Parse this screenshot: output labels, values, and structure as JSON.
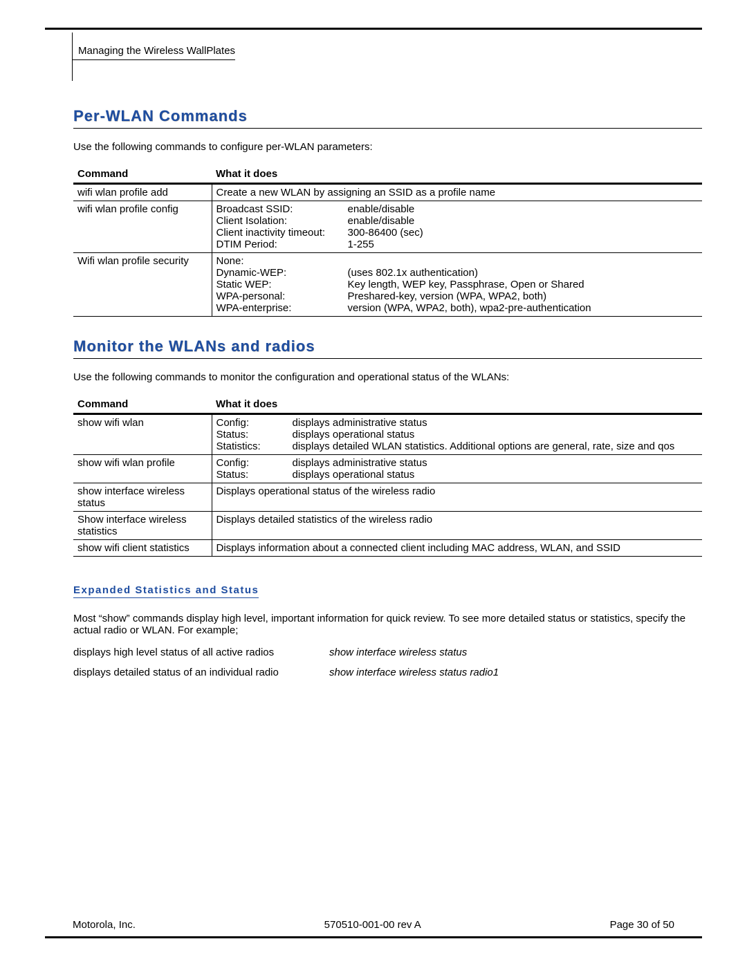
{
  "breadcrumb": "Managing the Wireless WallPlates",
  "section1": {
    "title": "Per-WLAN Commands",
    "intro": "Use the following commands to configure per-WLAN parameters:",
    "table": {
      "headers": [
        "Command",
        "What it does"
      ],
      "rows": [
        {
          "command": "wifi wlan profile add",
          "desc_plain": "Create a new WLAN by assigning an SSID as a profile name"
        },
        {
          "command": "wifi wlan profile config",
          "kv": [
            {
              "k": "Broadcast SSID:",
              "v": "enable/disable"
            },
            {
              "k": "Client Isolation:",
              "v": "enable/disable"
            },
            {
              "k": "Client inactivity timeout:",
              "v": "300-86400 (sec)"
            },
            {
              "k": "DTIM Period:",
              "v": "1-255"
            }
          ]
        },
        {
          "command": "Wifi wlan profile security",
          "kv": [
            {
              "k": "None:",
              "v": ""
            },
            {
              "k": "Dynamic-WEP:",
              "v": "(uses 802.1x authentication)"
            },
            {
              "k": "Static WEP:",
              "v": "Key length, WEP key, Passphrase, Open or Shared"
            },
            {
              "k": "WPA-personal:",
              "v": "Preshared-key, version (WPA, WPA2, both)"
            },
            {
              "k": "WPA-enterprise:",
              "v": "version (WPA, WPA2, both), wpa2-pre-authentication"
            }
          ]
        }
      ]
    }
  },
  "section2": {
    "title": "Monitor the WLANs and radios",
    "intro": "Use the following commands to monitor the configuration and operational status of the WLANs:",
    "table": {
      "headers": [
        "Command",
        "What it does"
      ],
      "rows": [
        {
          "command": "show wifi wlan",
          "kv2": [
            {
              "k": "Config:",
              "v": "displays administrative status"
            },
            {
              "k": "Status:",
              "v": "displays operational status"
            },
            {
              "k": "Statistics:",
              "v": "displays detailed WLAN statistics.  Additional options are general, rate, size and qos"
            }
          ]
        },
        {
          "command": "show wifi wlan profile",
          "kv2": [
            {
              "k": "Config:",
              "v": "displays administrative status"
            },
            {
              "k": "Status:",
              "v": "displays operational status"
            }
          ]
        },
        {
          "command": "show interface wireless status",
          "desc_plain": "Displays operational status of the wireless radio"
        },
        {
          "command": "Show interface wireless statistics",
          "desc_plain": "Displays detailed statistics of the wireless radio"
        },
        {
          "command": "show wifi client statistics",
          "desc_plain": "Displays information about a connected client including MAC address, WLAN, and SSID"
        }
      ]
    }
  },
  "subsection": {
    "title": "Expanded Statistics and Status",
    "para": "Most “show” commands display high level, important information for quick review.  To see more detailed status or statistics, specify the actual radio or WLAN.  For example;",
    "examples": [
      {
        "desc": "displays high level status of all active radios",
        "cmd": "show interface wireless status"
      },
      {
        "desc": "displays detailed status of an individual radio",
        "cmd": "show interface wireless status radio1"
      }
    ]
  },
  "footer": {
    "left": "Motorola, Inc.",
    "center": "570510-001-00 rev A",
    "right": "Page 30 of 50"
  }
}
